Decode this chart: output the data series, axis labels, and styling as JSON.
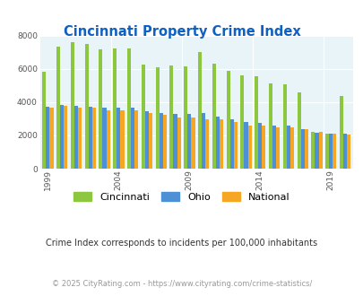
{
  "title": "Cincinnati Property Crime Index",
  "years": [
    1999,
    2000,
    2001,
    2002,
    2003,
    2004,
    2005,
    2006,
    2007,
    2008,
    2009,
    2010,
    2011,
    2012,
    2013,
    2014,
    2015,
    2016,
    2017,
    2018,
    2019,
    2020
  ],
  "cincinnati": [
    5850,
    7350,
    7600,
    7500,
    7150,
    7200,
    7250,
    6250,
    6100,
    6200,
    6150,
    7000,
    6300,
    5900,
    5600,
    5550,
    5150,
    5050,
    4600,
    2200,
    2100,
    4350
  ],
  "ohio": [
    3700,
    3850,
    3800,
    3700,
    3650,
    3650,
    3650,
    3480,
    3350,
    3300,
    3300,
    3350,
    3150,
    2980,
    2800,
    2750,
    2600,
    2600,
    2400,
    2150,
    2120,
    2080
  ],
  "national": [
    3650,
    3750,
    3650,
    3650,
    3500,
    3500,
    3500,
    3350,
    3250,
    3050,
    3050,
    2950,
    2950,
    2800,
    2600,
    2600,
    2500,
    2500,
    2400,
    2200,
    2080,
    2050
  ],
  "cincinnati_color": "#8dc63f",
  "ohio_color": "#4d90d5",
  "national_color": "#f5a623",
  "bg_color": "#e8f4f8",
  "title_color": "#1060c0",
  "subtitle_color": "#333333",
  "footer_color": "#999999",
  "subtitle": "Crime Index corresponds to incidents per 100,000 inhabitants",
  "footer": "© 2025 CityRating.com - https://www.cityrating.com/crime-statistics/",
  "ylim": [
    0,
    8000
  ],
  "yticks": [
    0,
    2000,
    4000,
    6000,
    8000
  ],
  "xtick_years": [
    1999,
    2004,
    2009,
    2014,
    2019
  ]
}
